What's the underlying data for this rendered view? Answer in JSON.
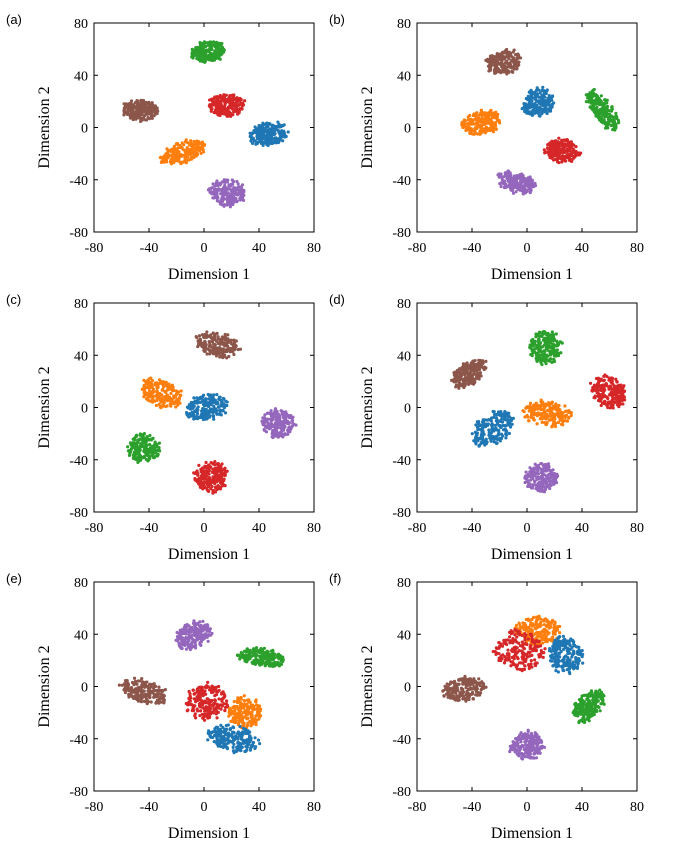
{
  "colors": {
    "blue": "#1f77b4",
    "orange": "#ff7f0e",
    "green": "#2ca02c",
    "red": "#d62728",
    "purple": "#9467bd",
    "brown": "#8c564b"
  },
  "chart_data": [
    {
      "type": "scatter",
      "panel": "(a)",
      "xlabel": "Dimension 1",
      "ylabel": "Dimension 2",
      "xlim": [
        -80,
        80
      ],
      "ylim": [
        -80,
        80
      ],
      "xticks": [
        "-80",
        "-40",
        "0",
        "40",
        "80"
      ],
      "yticks": [
        "80",
        "40",
        "0",
        "-40",
        "-80"
      ],
      "clusters": [
        {
          "color": "green",
          "cx": 3,
          "cy": 58,
          "rx": 13,
          "ry": 8,
          "angle": 10
        },
        {
          "color": "brown",
          "cx": -46,
          "cy": 13,
          "rx": 13,
          "ry": 8,
          "angle": -5
        },
        {
          "color": "red",
          "cx": 16,
          "cy": 17,
          "rx": 13,
          "ry": 9,
          "angle": 5
        },
        {
          "color": "blue",
          "cx": 47,
          "cy": -5,
          "rx": 14,
          "ry": 9,
          "angle": 10
        },
        {
          "color": "orange",
          "cx": -15,
          "cy": -19,
          "rx": 18,
          "ry": 8,
          "angle": 20
        },
        {
          "color": "purple",
          "cx": 17,
          "cy": -50,
          "rx": 14,
          "ry": 10,
          "angle": -10
        }
      ]
    },
    {
      "type": "scatter",
      "panel": "(b)",
      "xlabel": "Dimension 1",
      "ylabel": "Dimension 2",
      "xlim": [
        -80,
        80
      ],
      "ylim": [
        -80,
        80
      ],
      "xticks": [
        "-80",
        "-40",
        "0",
        "40",
        "80"
      ],
      "yticks": [
        "80",
        "40",
        "0",
        "-40",
        "-80"
      ],
      "clusters": [
        {
          "color": "brown",
          "cx": -17,
          "cy": 50,
          "rx": 13,
          "ry": 9,
          "angle": 15
        },
        {
          "color": "blue",
          "cx": 8,
          "cy": 19,
          "rx": 12,
          "ry": 11,
          "angle": 25
        },
        {
          "color": "green",
          "cx": 55,
          "cy": 13,
          "rx": 19,
          "ry": 7,
          "angle": -55
        },
        {
          "color": "orange",
          "cx": -33,
          "cy": 4,
          "rx": 15,
          "ry": 9,
          "angle": 10
        },
        {
          "color": "red",
          "cx": 26,
          "cy": -18,
          "rx": 13,
          "ry": 9,
          "angle": -10
        },
        {
          "color": "purple",
          "cx": -8,
          "cy": -42,
          "rx": 15,
          "ry": 8,
          "angle": -15
        }
      ]
    },
    {
      "type": "scatter",
      "panel": "(c)",
      "xlabel": "Dimension 1",
      "ylabel": "Dimension 2",
      "xlim": [
        -80,
        80
      ],
      "ylim": [
        -80,
        80
      ],
      "xticks": [
        "-80",
        "-40",
        "0",
        "40",
        "80"
      ],
      "yticks": [
        "80",
        "40",
        "0",
        "-40",
        "-80"
      ],
      "clusters": [
        {
          "color": "brown",
          "cx": 10,
          "cy": 48,
          "rx": 16,
          "ry": 9,
          "angle": -15
        },
        {
          "color": "orange",
          "cx": -31,
          "cy": 11,
          "rx": 16,
          "ry": 10,
          "angle": -25
        },
        {
          "color": "blue",
          "cx": 2,
          "cy": 0,
          "rx": 16,
          "ry": 10,
          "angle": 10
        },
        {
          "color": "purple",
          "cx": 54,
          "cy": -12,
          "rx": 12,
          "ry": 11,
          "angle": 0
        },
        {
          "color": "green",
          "cx": -44,
          "cy": -31,
          "rx": 12,
          "ry": 11,
          "angle": 0
        },
        {
          "color": "red",
          "cx": 5,
          "cy": -53,
          "rx": 12,
          "ry": 12,
          "angle": 0
        }
      ]
    },
    {
      "type": "scatter",
      "panel": "(d)",
      "xlabel": "Dimension 1",
      "ylabel": "Dimension 2",
      "xlim": [
        -80,
        80
      ],
      "ylim": [
        -80,
        80
      ],
      "xticks": [
        "-80",
        "-40",
        "0",
        "40",
        "80"
      ],
      "yticks": [
        "80",
        "40",
        "0",
        "-40",
        "-80"
      ],
      "clusters": [
        {
          "color": "green",
          "cx": 13,
          "cy": 46,
          "rx": 13,
          "ry": 12,
          "angle": 60
        },
        {
          "color": "brown",
          "cx": -42,
          "cy": 26,
          "rx": 15,
          "ry": 8,
          "angle": 35
        },
        {
          "color": "red",
          "cx": 59,
          "cy": 12,
          "rx": 14,
          "ry": 11,
          "angle": -40
        },
        {
          "color": "orange",
          "cx": 15,
          "cy": -5,
          "rx": 18,
          "ry": 10,
          "angle": -10
        },
        {
          "color": "blue",
          "cx": -25,
          "cy": -16,
          "rx": 17,
          "ry": 11,
          "angle": 35
        },
        {
          "color": "purple",
          "cx": 10,
          "cy": -54,
          "rx": 12,
          "ry": 11,
          "angle": 10
        }
      ]
    },
    {
      "type": "scatter",
      "panel": "(e)",
      "xlabel": "Dimension 1",
      "ylabel": "Dimension 2",
      "xlim": [
        -80,
        80
      ],
      "ylim": [
        -80,
        80
      ],
      "xticks": [
        "-80",
        "-40",
        "0",
        "40",
        "80"
      ],
      "yticks": [
        "80",
        "40",
        "0",
        "-40",
        "-80"
      ],
      "clusters": [
        {
          "color": "purple",
          "cx": -8,
          "cy": 39,
          "rx": 14,
          "ry": 10,
          "angle": 25
        },
        {
          "color": "green",
          "cx": 42,
          "cy": 22,
          "rx": 17,
          "ry": 7,
          "angle": -10
        },
        {
          "color": "brown",
          "cx": -44,
          "cy": -4,
          "rx": 18,
          "ry": 9,
          "angle": -15
        },
        {
          "color": "red",
          "cx": 2,
          "cy": -12,
          "rx": 15,
          "ry": 14,
          "angle": 0
        },
        {
          "color": "orange",
          "cx": 30,
          "cy": -20,
          "rx": 12,
          "ry": 12,
          "angle": 0
        },
        {
          "color": "blue",
          "cx": 20,
          "cy": -40,
          "rx": 20,
          "ry": 10,
          "angle": -10
        }
      ]
    },
    {
      "type": "scatter",
      "panel": "(f)",
      "xlabel": "Dimension 1",
      "ylabel": "Dimension 2",
      "xlim": [
        -80,
        80
      ],
      "ylim": [
        -80,
        80
      ],
      "xticks": [
        "-80",
        "-40",
        "0",
        "40",
        "80"
      ],
      "yticks": [
        "80",
        "40",
        "0",
        "-40",
        "-80"
      ],
      "clusters": [
        {
          "color": "orange",
          "cx": 8,
          "cy": 43,
          "rx": 16,
          "ry": 11,
          "angle": 0
        },
        {
          "color": "red",
          "cx": -5,
          "cy": 28,
          "rx": 18,
          "ry": 16,
          "angle": 0
        },
        {
          "color": "blue",
          "cx": 28,
          "cy": 24,
          "rx": 13,
          "ry": 14,
          "angle": 10
        },
        {
          "color": "brown",
          "cx": -46,
          "cy": -2,
          "rx": 15,
          "ry": 9,
          "angle": 10
        },
        {
          "color": "green",
          "cx": 45,
          "cy": -15,
          "rx": 14,
          "ry": 9,
          "angle": 50
        },
        {
          "color": "purple",
          "cx": 0,
          "cy": -45,
          "rx": 13,
          "ry": 11,
          "angle": 0
        }
      ]
    }
  ]
}
